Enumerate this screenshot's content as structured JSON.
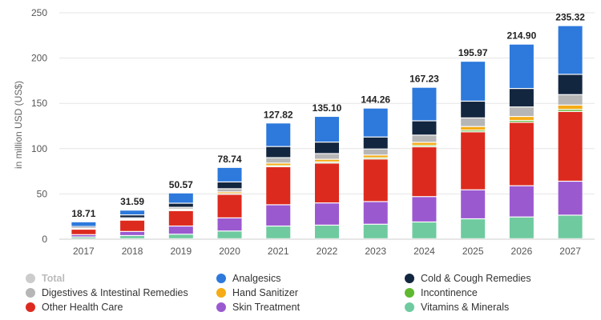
{
  "chart_data": {
    "type": "bar",
    "stacked": true,
    "ylabel": "in million USD (US$)",
    "ylim": [
      0,
      250
    ],
    "yticks": [
      "0",
      "50",
      "100",
      "150",
      "200",
      "250"
    ],
    "grid": true,
    "legend_position": "bottom",
    "categories": [
      "2017",
      "2018",
      "2019",
      "2020",
      "2021",
      "2022",
      "2023",
      "2024",
      "2025",
      "2026",
      "2027"
    ],
    "totals": [
      "18.71",
      "31.59",
      "50.57",
      "78.74",
      "127.82",
      "135.10",
      "144.26",
      "167.23",
      "195.97",
      "214.90",
      "235.32"
    ],
    "total_values": [
      18.71,
      31.59,
      50.57,
      78.74,
      127.82,
      135.1,
      144.26,
      167.23,
      195.97,
      214.9,
      235.32
    ],
    "total_legend": {
      "name": "Total",
      "color": "#cccccc"
    },
    "series": [
      {
        "name": "Vitamins & Minerals",
        "color": "#6fcb9f",
        "values": [
          2,
          3.5,
          5,
          8.5,
          14,
          15,
          16,
          18.5,
          22,
          24,
          26
        ]
      },
      {
        "name": "Skin Treatment",
        "color": "#9b59d0",
        "values": [
          2.5,
          4.5,
          9,
          14.5,
          23.5,
          24.5,
          25,
          28,
          32,
          34.5,
          37.5
        ]
      },
      {
        "name": "Other Health Care",
        "color": "#dd2a1e",
        "values": [
          6,
          12.5,
          17,
          26,
          42,
          44,
          47,
          55,
          64,
          70,
          77
        ]
      },
      {
        "name": "Incontinence",
        "color": "#5fb82f",
        "values": [
          0.2,
          0.4,
          0.6,
          0.8,
          1.2,
          1.3,
          1.4,
          1.5,
          1.9,
          2.1,
          2.3
        ]
      },
      {
        "name": "Hand Sanitizer",
        "color": "#f5ac16",
        "values": [
          0.5,
          0.8,
          1.1,
          1.9,
          2.8,
          2.9,
          3,
          3.4,
          4,
          4.4,
          4.8
        ]
      },
      {
        "name": "Digestives & Intestinal Remedies",
        "color": "#b6b6b6",
        "values": [
          0.8,
          1.4,
          2,
          3.5,
          6,
          6.3,
          6.7,
          8,
          9.5,
          10.5,
          11.5
        ]
      },
      {
        "name": "Cold & Cough Remedies",
        "color": "#13263f",
        "values": [
          1.5,
          3.2,
          4.5,
          7.5,
          12.3,
          12.7,
          13.2,
          15.8,
          18.5,
          20.4,
          22.4
        ]
      },
      {
        "name": "Analgesics",
        "color": "#2d79dc",
        "values": [
          5.21,
          5.29,
          11.37,
          16.04,
          26.02,
          28.4,
          31.96,
          37.03,
          44.07,
          49.0,
          53.82
        ]
      }
    ]
  },
  "legend": [
    {
      "label": "Total",
      "color": "#cccccc"
    },
    {
      "label": "Analgesics",
      "color": "#2d79dc"
    },
    {
      "label": "Cold & Cough Remedies",
      "color": "#13263f"
    },
    {
      "label": "Digestives & Intestinal Remedies",
      "color": "#b6b6b6"
    },
    {
      "label": "Hand Sanitizer",
      "color": "#f5ac16"
    },
    {
      "label": "Incontinence",
      "color": "#5fb82f"
    },
    {
      "label": "Other Health Care",
      "color": "#dd2a1e"
    },
    {
      "label": "Skin Treatment",
      "color": "#9b59d0"
    },
    {
      "label": "Vitamins & Minerals",
      "color": "#6fcb9f"
    }
  ]
}
